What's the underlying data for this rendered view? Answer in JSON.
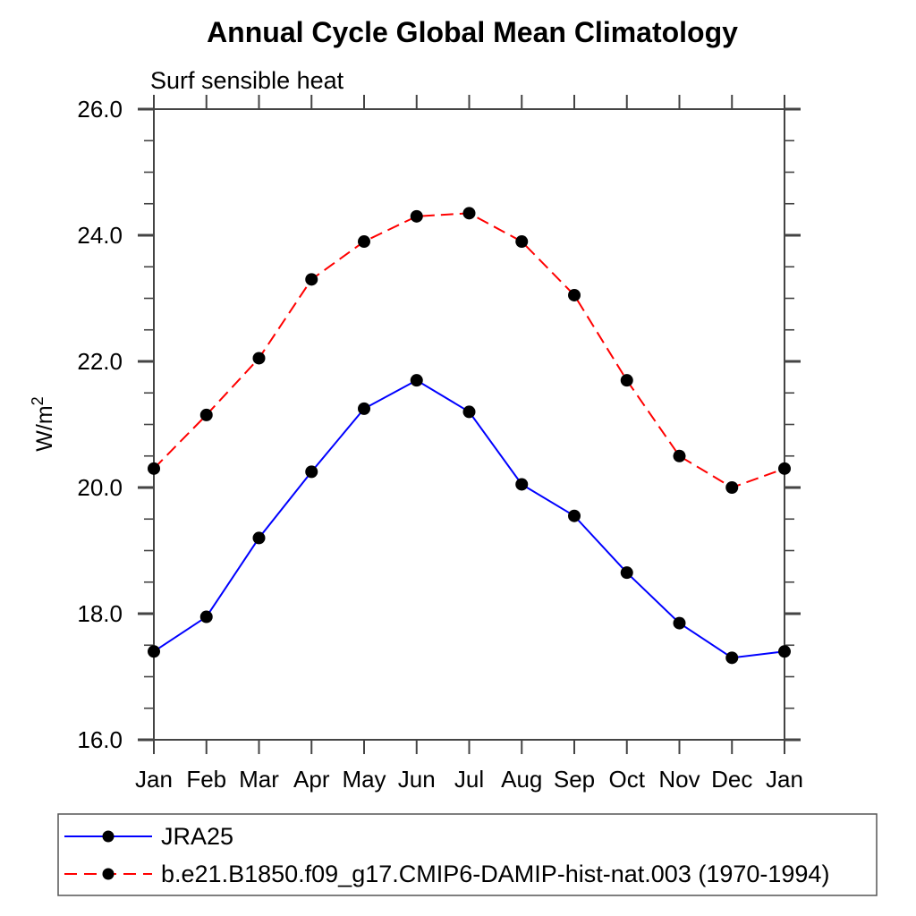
{
  "header": {
    "title": "Annual Cycle Global Mean Climatology",
    "subtitle": "Surf sensible heat"
  },
  "axes": {
    "y_label": "W/m",
    "y_label_sup": "2"
  },
  "colors": {
    "background": "#ffffff",
    "axis": "#444444",
    "text": "#000000",
    "legend_border": "#555555",
    "marker": "#000000",
    "series_blue": "#0000ff",
    "series_red": "#ff0000"
  },
  "chart_data": {
    "type": "line",
    "title": "Annual Cycle Global Mean Climatology",
    "subtitle": "Surf sensible heat",
    "xlabel": "",
    "ylabel": "W/m^2",
    "categories": [
      "Jan",
      "Feb",
      "Mar",
      "Apr",
      "May",
      "Jun",
      "Jul",
      "Aug",
      "Sep",
      "Oct",
      "Nov",
      "Dec",
      "Jan"
    ],
    "ylim": [
      16.0,
      26.0
    ],
    "y_major_ticks": [
      16.0,
      18.0,
      20.0,
      22.0,
      24.0,
      26.0
    ],
    "y_tick_labels": [
      "16.0",
      "18.0",
      "20.0",
      "22.0",
      "24.0",
      "26.0"
    ],
    "y_minor_step": 0.5,
    "grid": false,
    "legend_position": "bottom-left-box",
    "series": [
      {
        "name": "JRA25",
        "color": "#0000ff",
        "line_style": "solid",
        "marker": "filled-circle",
        "marker_color": "#000000",
        "values": [
          17.4,
          17.95,
          19.2,
          20.25,
          21.25,
          21.7,
          21.2,
          20.05,
          19.55,
          18.65,
          17.85,
          17.3,
          17.4
        ]
      },
      {
        "name": "b.e21.B1850.f09_g17.CMIP6-DAMIP-hist-nat.003 (1970-1994)",
        "color": "#ff0000",
        "line_style": "dashed",
        "marker": "filled-circle",
        "marker_color": "#000000",
        "values": [
          20.3,
          21.15,
          22.05,
          23.3,
          23.9,
          24.3,
          24.35,
          23.9,
          23.05,
          21.7,
          20.5,
          20.0,
          20.3
        ]
      }
    ]
  }
}
